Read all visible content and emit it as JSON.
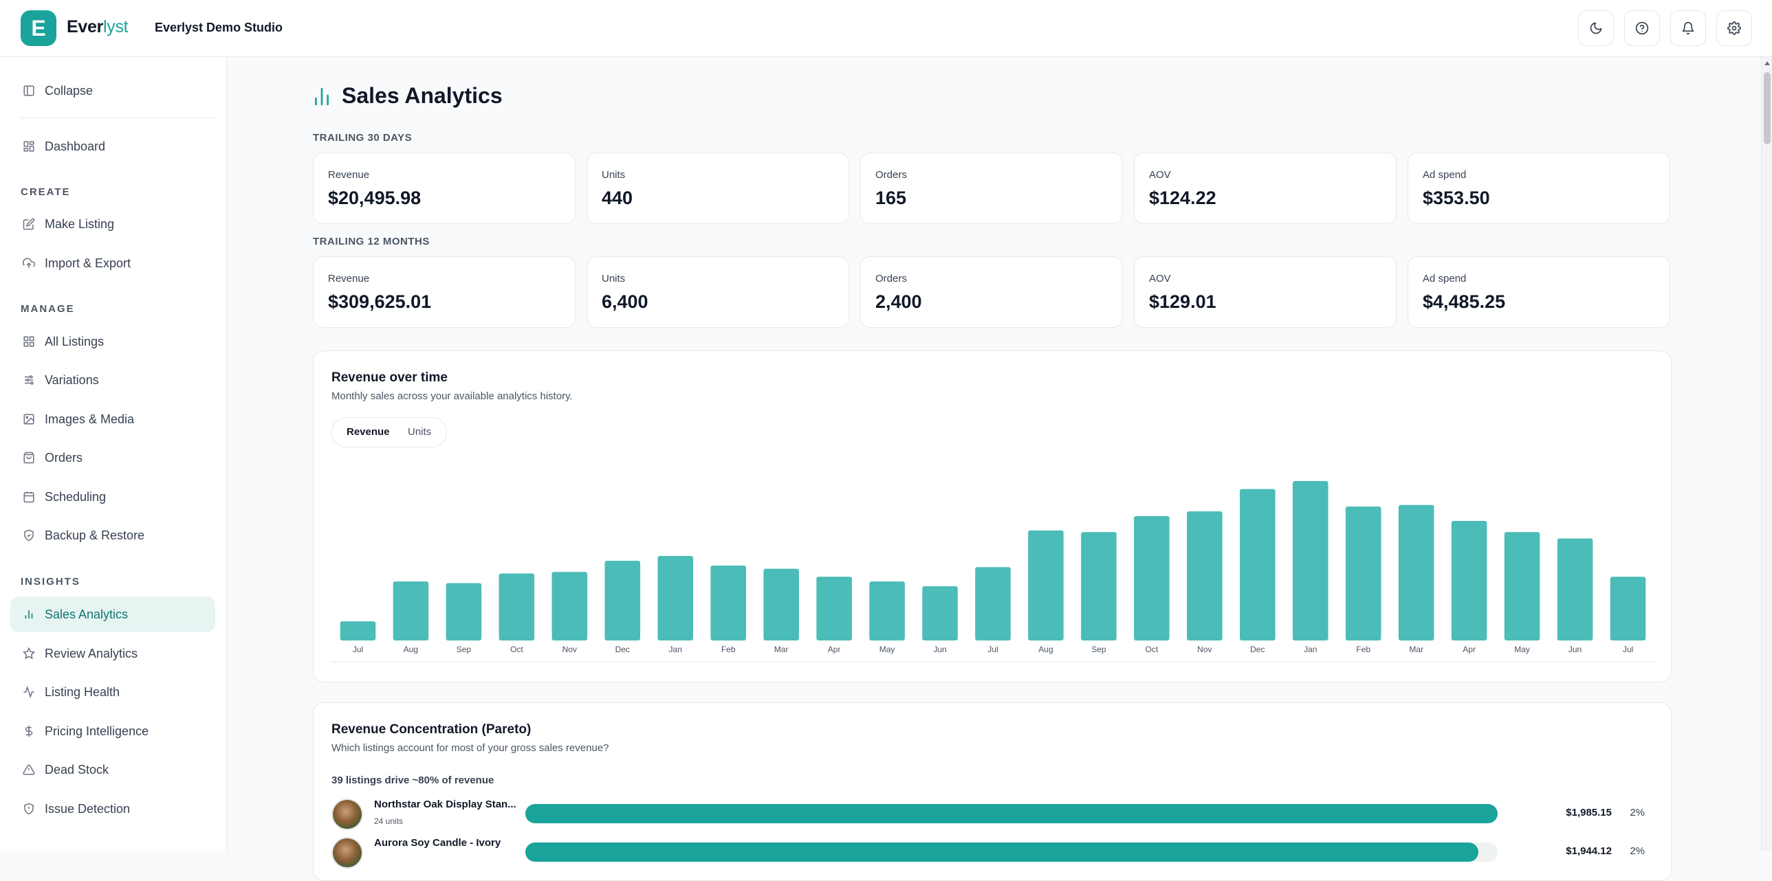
{
  "brand": {
    "badge_letter": "E",
    "name_main": "Ever",
    "name_accent": "lyst",
    "studio": "Everlyst Demo Studio",
    "accent_color": "#1aa39a"
  },
  "header_actions": [
    {
      "name": "theme-toggle-button",
      "icon": "moon-icon"
    },
    {
      "name": "help-button",
      "icon": "help-circle-icon"
    },
    {
      "name": "notifications-button",
      "icon": "bell-icon"
    },
    {
      "name": "settings-button",
      "icon": "gear-icon"
    }
  ],
  "sidebar": {
    "collapse_label": "Collapse",
    "dashboard_label": "Dashboard",
    "sections": {
      "create": "CREATE",
      "manage": "MANAGE",
      "insights": "INSIGHTS"
    },
    "create_items": [
      "Make Listing",
      "Import & Export"
    ],
    "manage_items": [
      "All Listings",
      "Variations",
      "Images & Media",
      "Orders",
      "Scheduling",
      "Backup & Restore"
    ],
    "insights_items": [
      "Sales Analytics",
      "Review Analytics",
      "Listing Health",
      "Pricing Intelligence",
      "Dead Stock",
      "Issue Detection"
    ],
    "active_item": "Sales Analytics"
  },
  "page": {
    "title": "Sales Analytics"
  },
  "trailing_30": {
    "label": "TRAILING 30 DAYS",
    "kpis": [
      {
        "label": "Revenue",
        "value": "$20,495.98"
      },
      {
        "label": "Units",
        "value": "440"
      },
      {
        "label": "Orders",
        "value": "165"
      },
      {
        "label": "AOV",
        "value": "$124.22"
      },
      {
        "label": "Ad spend",
        "value": "$353.50"
      }
    ]
  },
  "trailing_12": {
    "label": "TRAILING 12 MONTHS",
    "kpis": [
      {
        "label": "Revenue",
        "value": "$309,625.01"
      },
      {
        "label": "Units",
        "value": "6,400"
      },
      {
        "label": "Orders",
        "value": "2,400"
      },
      {
        "label": "AOV",
        "value": "$129.01"
      },
      {
        "label": "Ad spend",
        "value": "$4,485.25"
      }
    ]
  },
  "revenue_card": {
    "title": "Revenue over time",
    "subtitle": "Monthly sales across your available analytics history.",
    "toggle": {
      "revenue": "Revenue",
      "units": "Units",
      "selected": "Revenue"
    }
  },
  "chart_data": {
    "type": "bar",
    "title": "Revenue over time",
    "categories": [
      "Jul",
      "Aug",
      "Sep",
      "Oct",
      "Nov",
      "Dec",
      "Jan",
      "Feb",
      "Mar",
      "Apr",
      "May",
      "Jun",
      "Jul",
      "Aug",
      "Sep",
      "Oct",
      "Nov",
      "Dec",
      "Jan",
      "Feb",
      "Mar",
      "Apr",
      "May",
      "Jun",
      "Jul"
    ],
    "values": [
      12,
      37,
      36,
      42,
      43,
      50,
      53,
      47,
      45,
      40,
      37,
      34,
      46,
      69,
      68,
      78,
      81,
      95,
      100,
      84,
      85,
      75,
      68,
      64,
      40
    ],
    "ylim": [
      0,
      100
    ],
    "grid": false,
    "bar_color": "#4bbcb8"
  },
  "pareto": {
    "title": "Revenue Concentration (Pareto)",
    "subtitle": "Which listings account for most of your gross sales revenue?",
    "headline": "39 listings drive ~80% of revenue",
    "rows": [
      {
        "name": "Northstar Oak Display Stan...",
        "units": "24 units",
        "amount": "$1,985.15",
        "pct": "2%",
        "share": 1.0
      },
      {
        "name": "Aurora Soy Candle - Ivory",
        "units": "",
        "amount": "$1,944.12",
        "pct": "2%",
        "share": 0.98
      }
    ]
  }
}
